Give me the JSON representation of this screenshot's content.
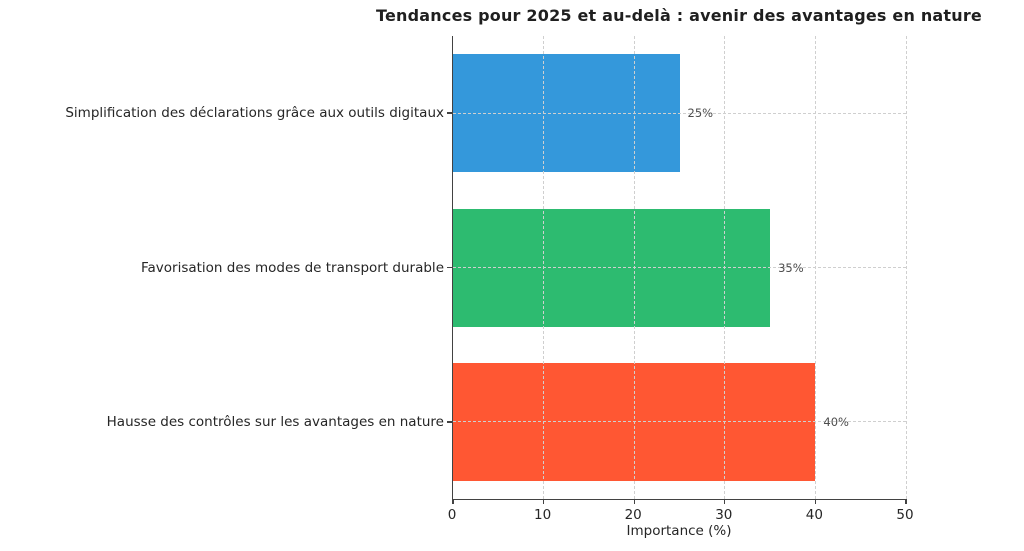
{
  "chart_data": {
    "type": "bar",
    "orientation": "horizontal",
    "title": "Tendances pour 2025 et au-delà : avenir des avantages en nature",
    "xlabel": "Importance (%)",
    "ylabel": "",
    "categories": [
      "Simplification des déclarations grâce aux outils digitaux",
      "Favorisation des modes de transport durable",
      "Hausse des contrôles sur les avantages en nature"
    ],
    "values": [
      25,
      35,
      40
    ],
    "value_labels": [
      "25%",
      "35%",
      "40%"
    ],
    "colors": [
      "#3498db",
      "#2dbb70",
      "#ff5733"
    ],
    "xlim": [
      0,
      50
    ],
    "xticks": [
      0,
      10,
      20,
      30,
      40,
      50
    ],
    "grid": "dashed-both-axes-over-bars",
    "grid_color": "#cfcfcf",
    "spine_color": "#424242",
    "text_color": "#262626",
    "value_label_color": "#4d4d4d",
    "legend": "none"
  }
}
